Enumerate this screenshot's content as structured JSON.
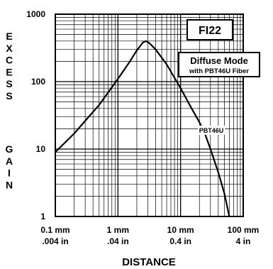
{
  "chart_data": {
    "type": "line",
    "title": "FI22",
    "subtitle": "Diffuse Mode",
    "subtitle_detail": "with PBT46U Fiber",
    "xlabel": "DISTANCE",
    "ylabel": "EXCESS GAIN",
    "ylabel_letters": [
      "E",
      "X",
      "C",
      "E",
      "S",
      "S",
      "G",
      "A",
      "I",
      "N"
    ],
    "x_scale": "log",
    "y_scale": "log",
    "xlim_mm": [
      0.1,
      100
    ],
    "ylim": [
      1,
      1000
    ],
    "grid": true,
    "x_ticks": [
      {
        "value": 0.1,
        "label_mm": "0.1 mm",
        "label_in": ".004 in"
      },
      {
        "value": 1,
        "label_mm": "1 mm",
        "label_in": ".04 in"
      },
      {
        "value": 10,
        "label_mm": "10 mm",
        "label_in": "0.4 in"
      },
      {
        "value": 100,
        "label_mm": "100 mm",
        "label_in": "4 in"
      }
    ],
    "y_ticks": [
      {
        "value": 1,
        "label": "1"
      },
      {
        "value": 10,
        "label": "10"
      },
      {
        "value": 100,
        "label": "100"
      },
      {
        "value": 1000,
        "label": "1000"
      }
    ],
    "series": [
      {
        "name": "PBT46U",
        "color": "#000000",
        "x": [
          0.1,
          0.2,
          0.5,
          1,
          1.5,
          2,
          2.5,
          2.8,
          3.2,
          4,
          6,
          10,
          15,
          20,
          25,
          30,
          40,
          50,
          60
        ],
        "y": [
          9,
          17,
          45,
          110,
          190,
          290,
          380,
          400,
          370,
          300,
          180,
          80,
          40,
          25,
          16,
          10,
          4.5,
          2.2,
          1.0
        ]
      }
    ]
  }
}
